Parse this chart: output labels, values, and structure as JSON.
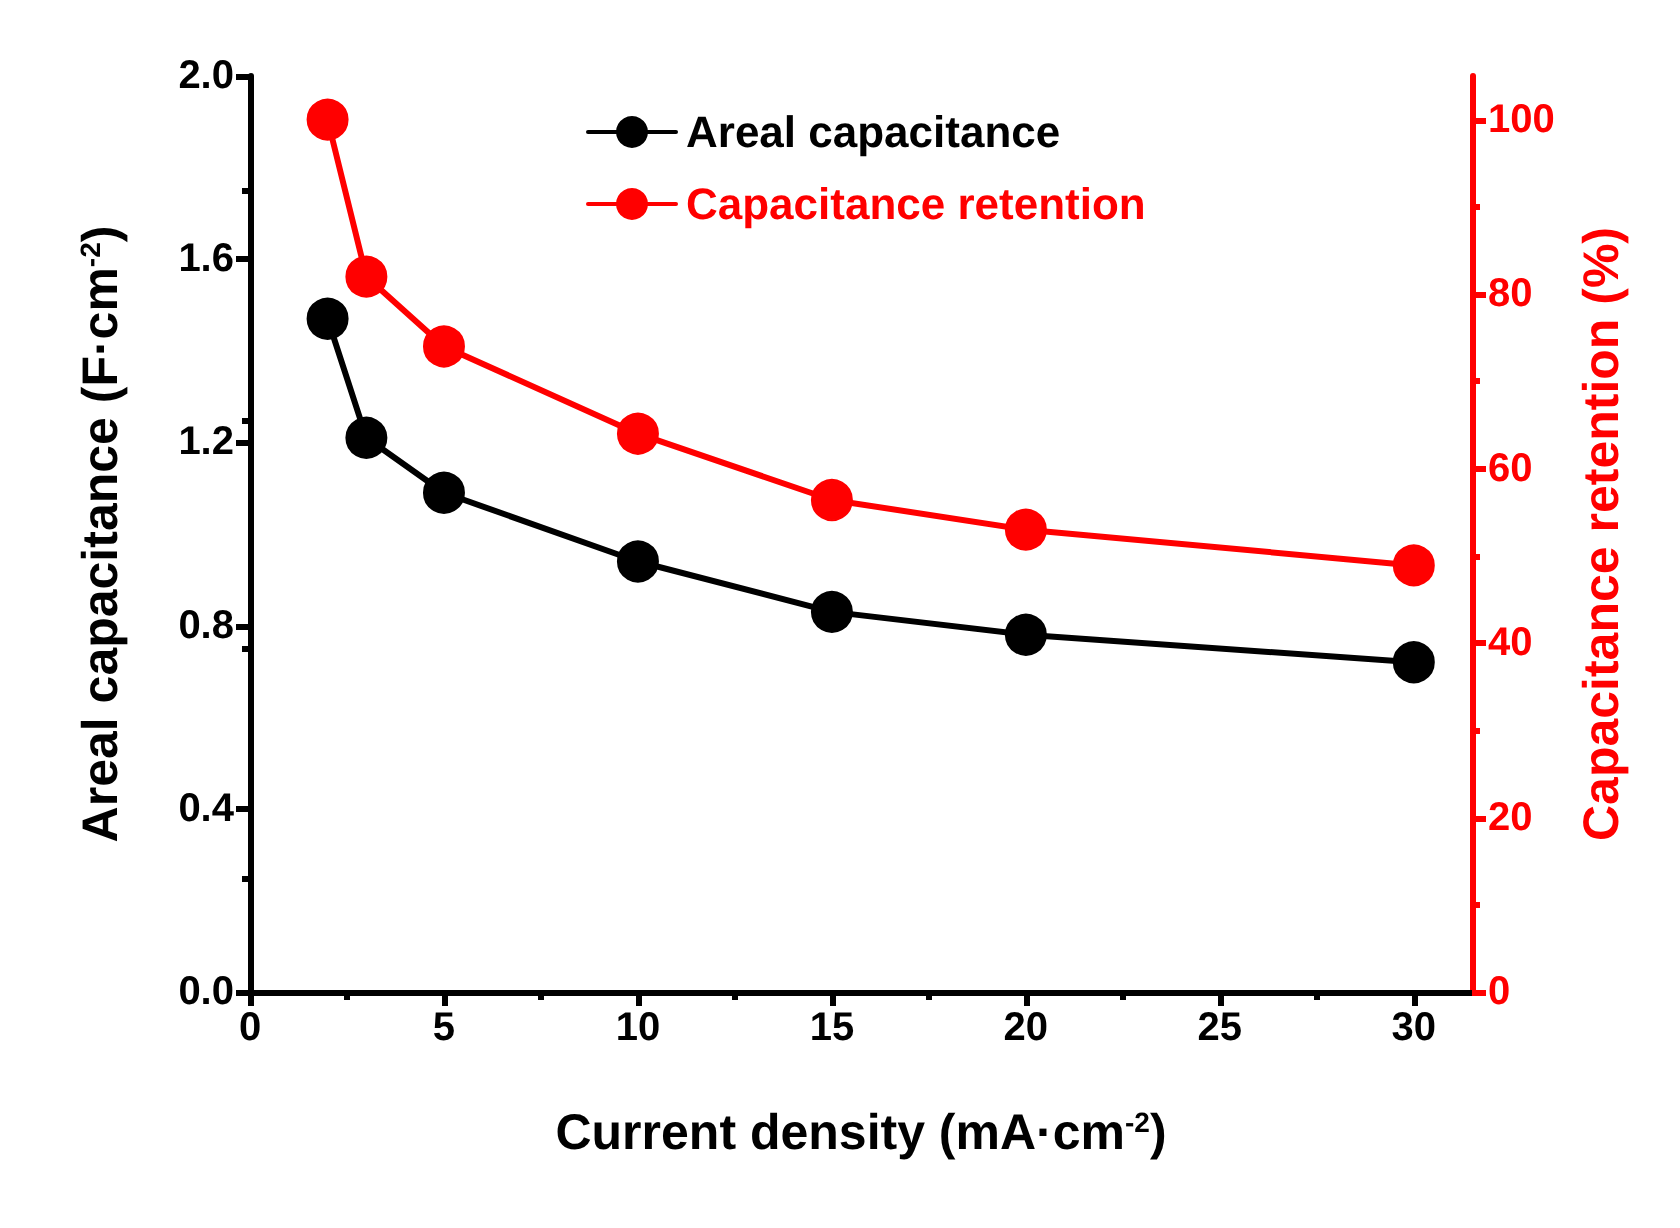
{
  "chart_data": {
    "type": "line",
    "xlabel": "Current density (mA·cm$^{-2}$)",
    "ylabel": "Areal capacitance (F·cm$^{-2}$)",
    "y2label": "Capacitance retention (%)",
    "x": [
      2,
      3,
      5,
      10,
      15,
      20,
      30
    ],
    "series": [
      {
        "name": "Areal capacitance",
        "color": "#000000",
        "values": [
          1.47,
          1.21,
          1.09,
          0.94,
          0.83,
          0.78,
          0.72
        ]
      },
      {
        "name": "Capacitance retention",
        "color": "#ff0000",
        "axis": "y2",
        "values": [
          100,
          82,
          74,
          64,
          56.4,
          53,
          48.9
        ]
      }
    ],
    "xlim": [
      0,
      31.5
    ],
    "xticks": [
      0,
      5,
      10,
      15,
      20,
      25,
      30
    ],
    "ylim": [
      0,
      2
    ],
    "yticks": [
      {
        "value": 0,
        "label": "0.0"
      },
      0.4,
      0.8,
      1.2,
      1.6,
      {
        "value": 2,
        "label": "2.0"
      }
    ],
    "y2lim": [
      0,
      105
    ],
    "y2ticks": [
      0,
      20,
      40,
      60,
      80,
      100
    ],
    "marker": "circle",
    "line_style": "solid",
    "legend": "top",
    "grid": false
  }
}
